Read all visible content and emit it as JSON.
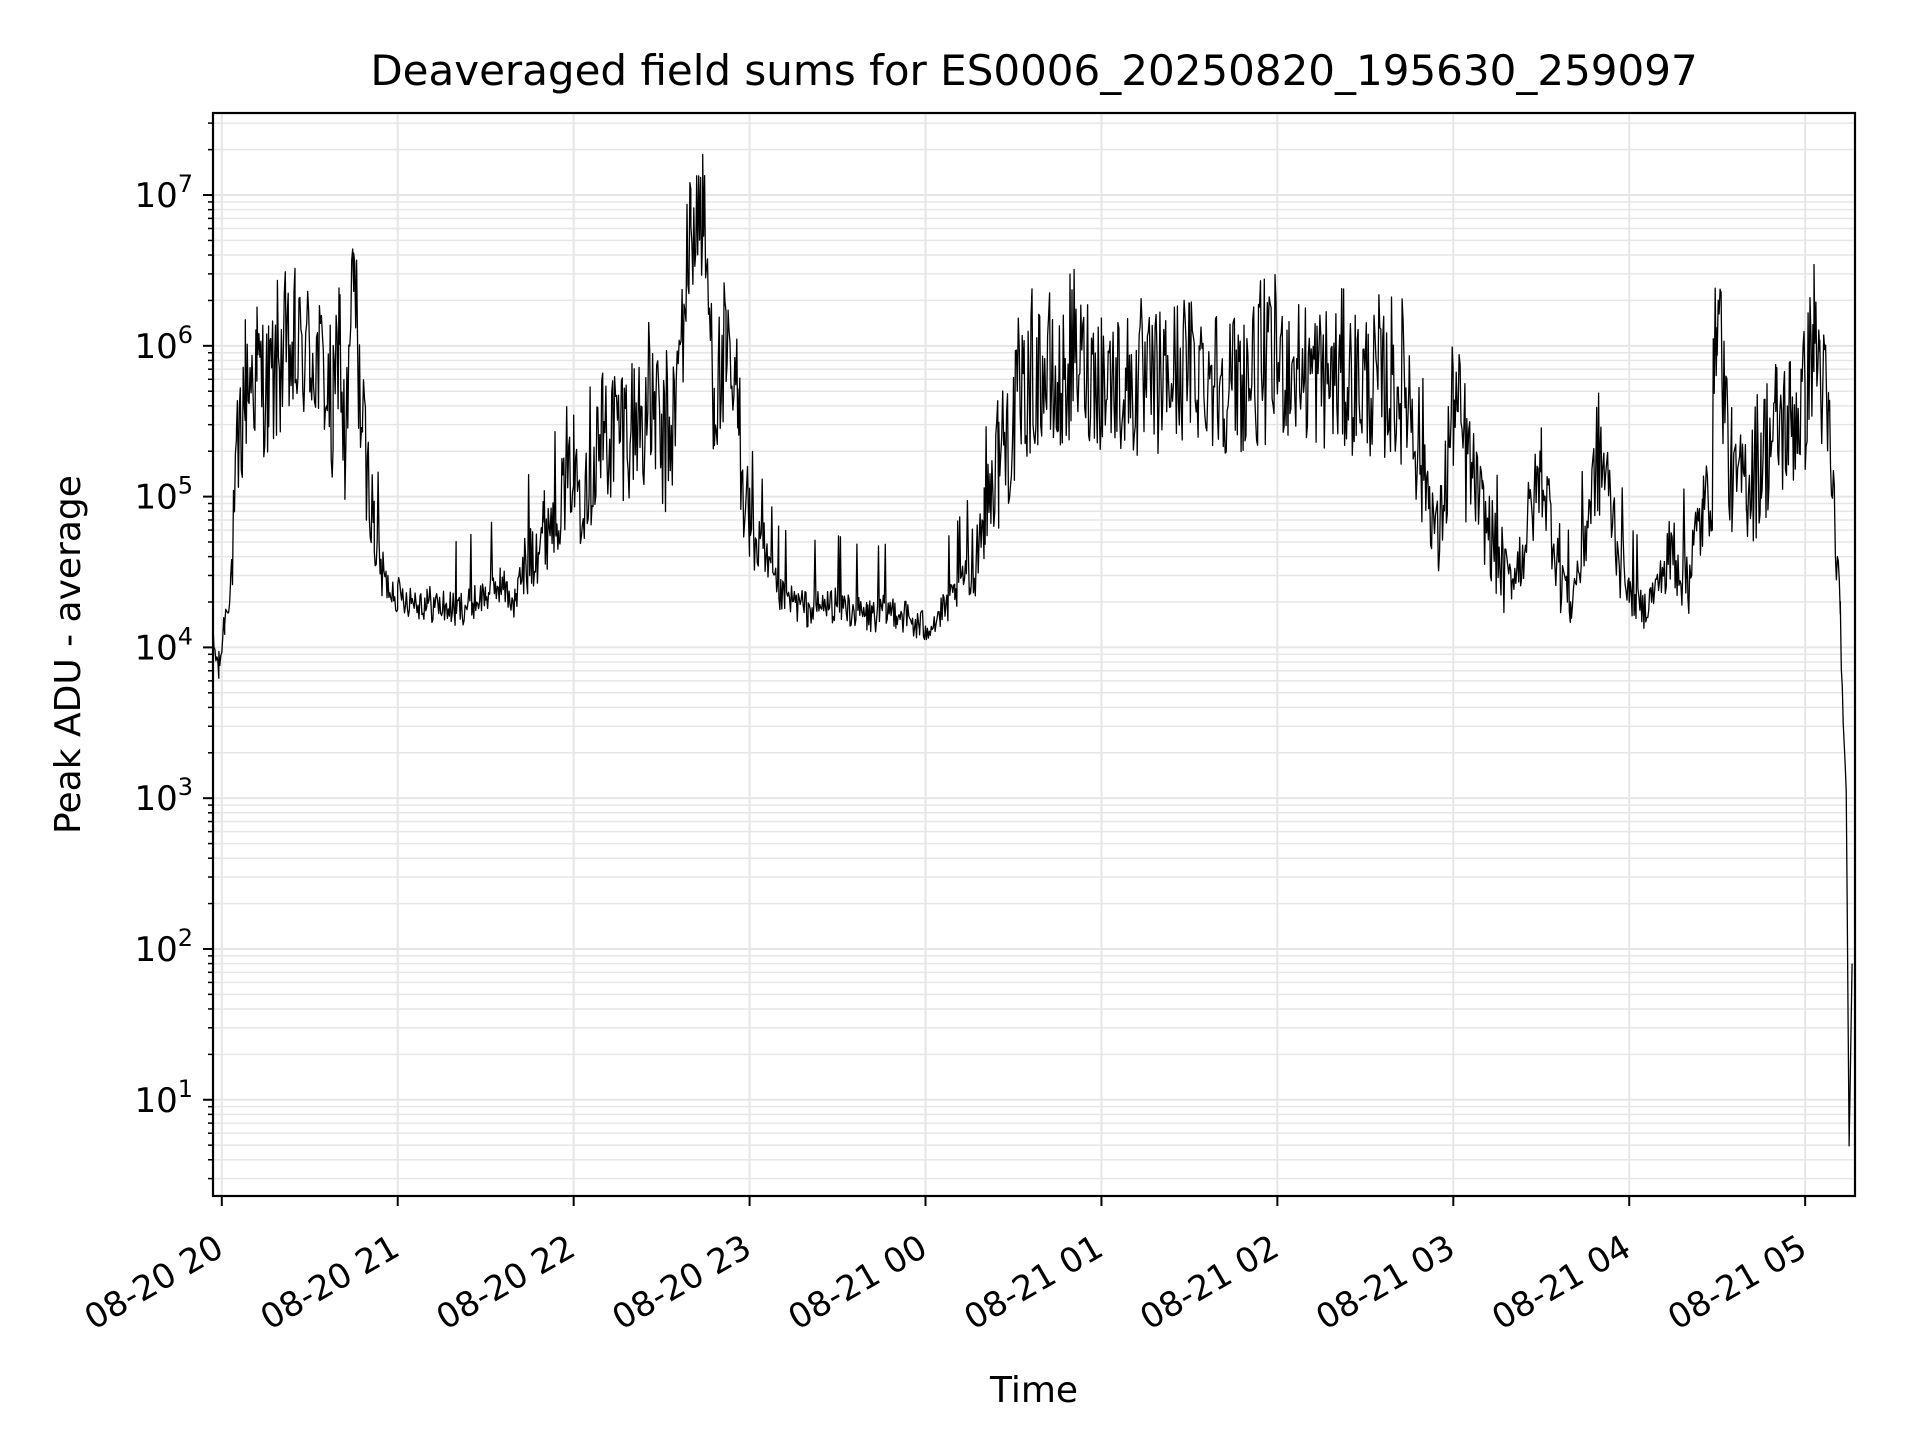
{
  "chart_data": {
    "type": "line",
    "title": "Deaveraged field sums for ES0006_20250820_195630_259097",
    "xlabel": "Time",
    "ylabel": "Peak ADU - average",
    "yscale": "log",
    "ylim": [
      2.3,
      35000000
    ],
    "xlim": [
      "2025-08-20 19:57",
      "2025-08-21 05:17"
    ],
    "grid": true,
    "grid_color": "#e6e6e6",
    "line_color": "#000000",
    "x_ticks": [
      {
        "t": "2025-08-20 20:00",
        "label": "08-20 20"
      },
      {
        "t": "2025-08-20 21:00",
        "label": "08-20 21"
      },
      {
        "t": "2025-08-20 22:00",
        "label": "08-20 22"
      },
      {
        "t": "2025-08-20 23:00",
        "label": "08-20 23"
      },
      {
        "t": "2025-08-21 00:00",
        "label": "08-21 00"
      },
      {
        "t": "2025-08-21 01:00",
        "label": "08-21 01"
      },
      {
        "t": "2025-08-21 02:00",
        "label": "08-21 02"
      },
      {
        "t": "2025-08-21 03:00",
        "label": "08-21 03"
      },
      {
        "t": "2025-08-21 04:00",
        "label": "08-21 04"
      },
      {
        "t": "2025-08-21 05:00",
        "label": "08-21 05"
      }
    ],
    "y_ticks": [
      {
        "value": 10,
        "base": "10",
        "exp": "1"
      },
      {
        "value": 100,
        "base": "10",
        "exp": "2"
      },
      {
        "value": 1000,
        "base": "10",
        "exp": "3"
      },
      {
        "value": 10000,
        "base": "10",
        "exp": "4"
      },
      {
        "value": 100000,
        "base": "10",
        "exp": "5"
      },
      {
        "value": 1000000,
        "base": "10",
        "exp": "6"
      },
      {
        "value": 10000000,
        "base": "10",
        "exp": "7"
      }
    ],
    "series": [
      {
        "x": [
          "2025-08-20 19:57",
          "2025-08-20 19:59",
          "2025-08-20 20:01",
          "2025-08-20 20:03",
          "2025-08-20 20:05",
          "2025-08-20 20:08",
          "2025-08-20 20:12",
          "2025-08-20 20:16",
          "2025-08-20 20:20",
          "2025-08-20 20:25",
          "2025-08-20 20:30",
          "2025-08-20 20:35",
          "2025-08-20 20:38",
          "2025-08-20 20:40",
          "2025-08-20 20:42",
          "2025-08-20 20:45",
          "2025-08-20 20:48",
          "2025-08-20 20:52",
          "2025-08-20 20:56",
          "2025-08-20 21:00",
          "2025-08-20 21:10",
          "2025-08-20 21:20",
          "2025-08-20 21:30",
          "2025-08-20 21:35",
          "2025-08-20 21:40",
          "2025-08-20 21:45",
          "2025-08-20 21:50",
          "2025-08-20 21:55",
          "2025-08-20 22:00",
          "2025-08-20 22:10",
          "2025-08-20 22:20",
          "2025-08-20 22:28",
          "2025-08-20 22:30",
          "2025-08-20 22:34",
          "2025-08-20 22:36",
          "2025-08-20 22:40",
          "2025-08-20 22:44",
          "2025-08-20 22:48",
          "2025-08-20 22:52",
          "2025-08-20 22:56",
          "2025-08-20 23:00",
          "2025-08-20 23:10",
          "2025-08-20 23:20",
          "2025-08-20 23:30",
          "2025-08-20 23:40",
          "2025-08-20 23:50",
          "2025-08-20 23:58",
          "2025-08-21 00:05",
          "2025-08-21 00:10",
          "2025-08-21 00:15",
          "2025-08-21 00:20",
          "2025-08-21 00:25",
          "2025-08-21 00:30",
          "2025-08-21 00:35",
          "2025-08-21 00:40",
          "2025-08-21 00:45",
          "2025-08-21 00:50",
          "2025-08-21 01:00",
          "2025-08-21 01:15",
          "2025-08-21 01:30",
          "2025-08-21 01:45",
          "2025-08-21 02:00",
          "2025-08-21 02:15",
          "2025-08-21 02:30",
          "2025-08-21 02:45",
          "2025-08-21 02:55",
          "2025-08-21 03:00",
          "2025-08-21 03:10",
          "2025-08-21 03:20",
          "2025-08-21 03:30",
          "2025-08-21 03:40",
          "2025-08-21 03:50",
          "2025-08-21 04:00",
          "2025-08-21 04:05",
          "2025-08-21 04:10",
          "2025-08-21 04:15",
          "2025-08-21 04:20",
          "2025-08-21 04:25",
          "2025-08-21 04:28",
          "2025-08-21 04:30",
          "2025-08-21 04:35",
          "2025-08-21 04:40",
          "2025-08-21 04:45",
          "2025-08-21 04:50",
          "2025-08-21 04:55",
          "2025-08-21 05:00",
          "2025-08-21 05:03",
          "2025-08-21 05:05",
          "2025-08-21 05:08",
          "2025-08-21 05:10",
          "2025-08-21 05:12",
          "2025-08-21 05:13",
          "2025-08-21 05:14",
          "2025-08-21 05:15",
          "2025-08-21 05:16"
        ],
        "y": [
          12000,
          8000,
          17000,
          30000,
          200000,
          900000,
          1100000,
          800000,
          1200000,
          1300000,
          1500000,
          1000000,
          400000,
          2500000,
          250000,
          5000000,
          400000,
          80000,
          30000,
          25000,
          22000,
          20000,
          25000,
          30000,
          22000,
          60000,
          80000,
          120000,
          200000,
          400000,
          500000,
          600000,
          300000,
          500000,
          1200000,
          10000000,
          12000000,
          800000,
          1100000,
          600000,
          90000,
          25000,
          20000,
          22000,
          18000,
          20000,
          15000,
          18000,
          25000,
          40000,
          100000,
          300000,
          500000,
          900000,
          1100000,
          700000,
          1300000,
          1000000,
          800000,
          1200000,
          900000,
          1200000,
          1000000,
          900000,
          800000,
          60000,
          700000,
          100000,
          30000,
          200000,
          20000,
          300000,
          25000,
          20000,
          30000,
          60000,
          40000,
          100000,
          150000,
          4000000,
          150000,
          200000,
          300000,
          450000,
          500000,
          700000,
          2000000,
          1200000,
          400000,
          100000,
          20000,
          3000,
          1200,
          5,
          80
        ]
      }
    ]
  }
}
